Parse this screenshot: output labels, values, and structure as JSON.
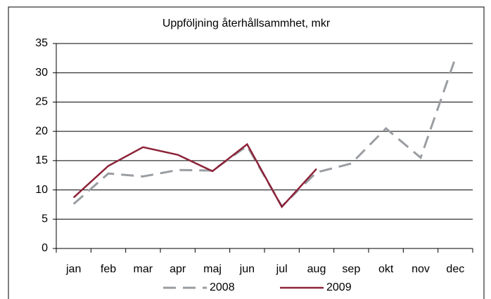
{
  "chart_data": {
    "type": "line",
    "title": "Uppföljning återhållsammhet, mkr",
    "categories": [
      "jan",
      "feb",
      "mar",
      "apr",
      "maj",
      "jun",
      "jul",
      "aug",
      "sep",
      "okt",
      "nov",
      "dec"
    ],
    "series": [
      {
        "name": "2008",
        "color": "#9a9da2",
        "dashed": true,
        "values": [
          7.6,
          12.8,
          12.3,
          13.4,
          13.3,
          17.5,
          7.2,
          13.0,
          14.5,
          20.5,
          15.5,
          32.5
        ]
      },
      {
        "name": "2009",
        "color": "#8c2238",
        "dashed": false,
        "values": [
          8.7,
          14.1,
          17.3,
          16.0,
          13.2,
          17.8,
          7.1,
          13.6,
          null,
          null,
          null,
          null
        ]
      }
    ],
    "ylim": [
      0,
      35
    ],
    "yticks": [
      0,
      5,
      10,
      15,
      20,
      25,
      30,
      35
    ],
    "grid": true,
    "legend": "bottom"
  }
}
